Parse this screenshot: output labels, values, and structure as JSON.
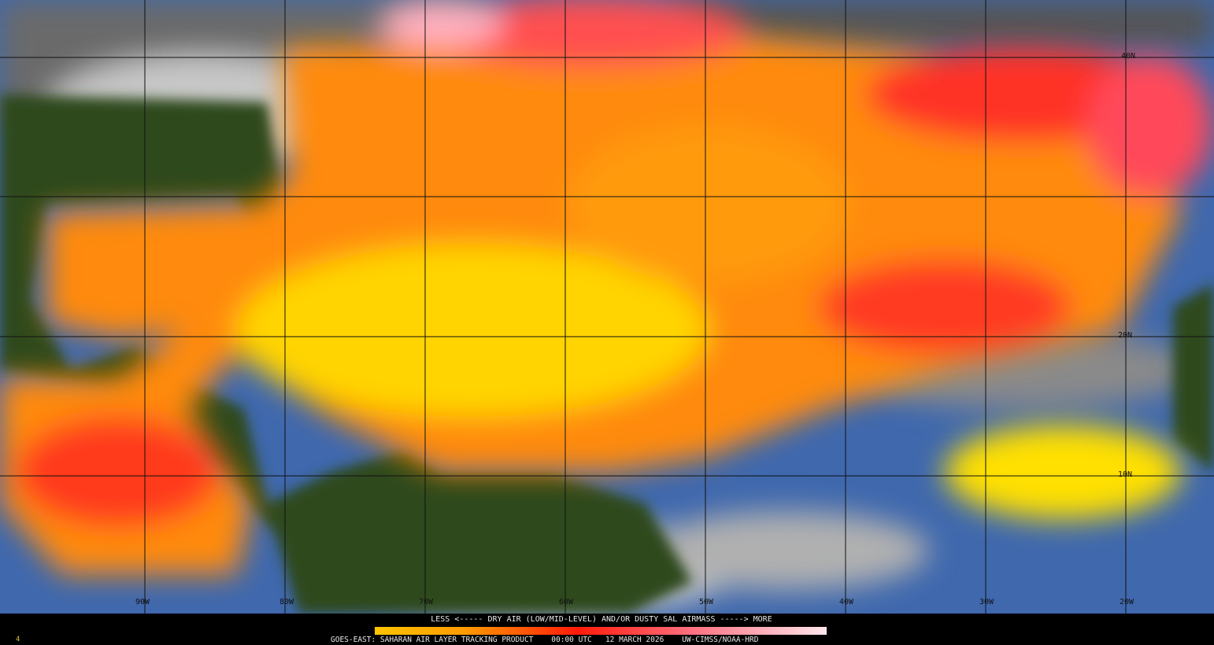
{
  "map": {
    "lat_labels": [
      "40N",
      "20N",
      "10N"
    ],
    "lon_labels": [
      "90W",
      "80W",
      "70W",
      "60W",
      "50W",
      "40W",
      "30W",
      "20W"
    ],
    "colors": {
      "ocean": "#3f68ad",
      "land": "#2f4a1e",
      "cloud": "#bdbdbd",
      "low": "#ffc400",
      "mid": "#ff2a1a",
      "high": "#ffe6ec"
    }
  },
  "footer": {
    "legend_title": "LESS <----- DRY AIR (LOW/MID-LEVEL) AND/OR DUSTY SAL AIRMASS -----> MORE",
    "product": "GOES-EAST: SAHARAN AIR LAYER TRACKING PRODUCT",
    "time": "00:00 UTC",
    "date": "12 MARCH 2026",
    "credit": "UW-CIMSS/NOAA-HRD",
    "corner": "4"
  }
}
